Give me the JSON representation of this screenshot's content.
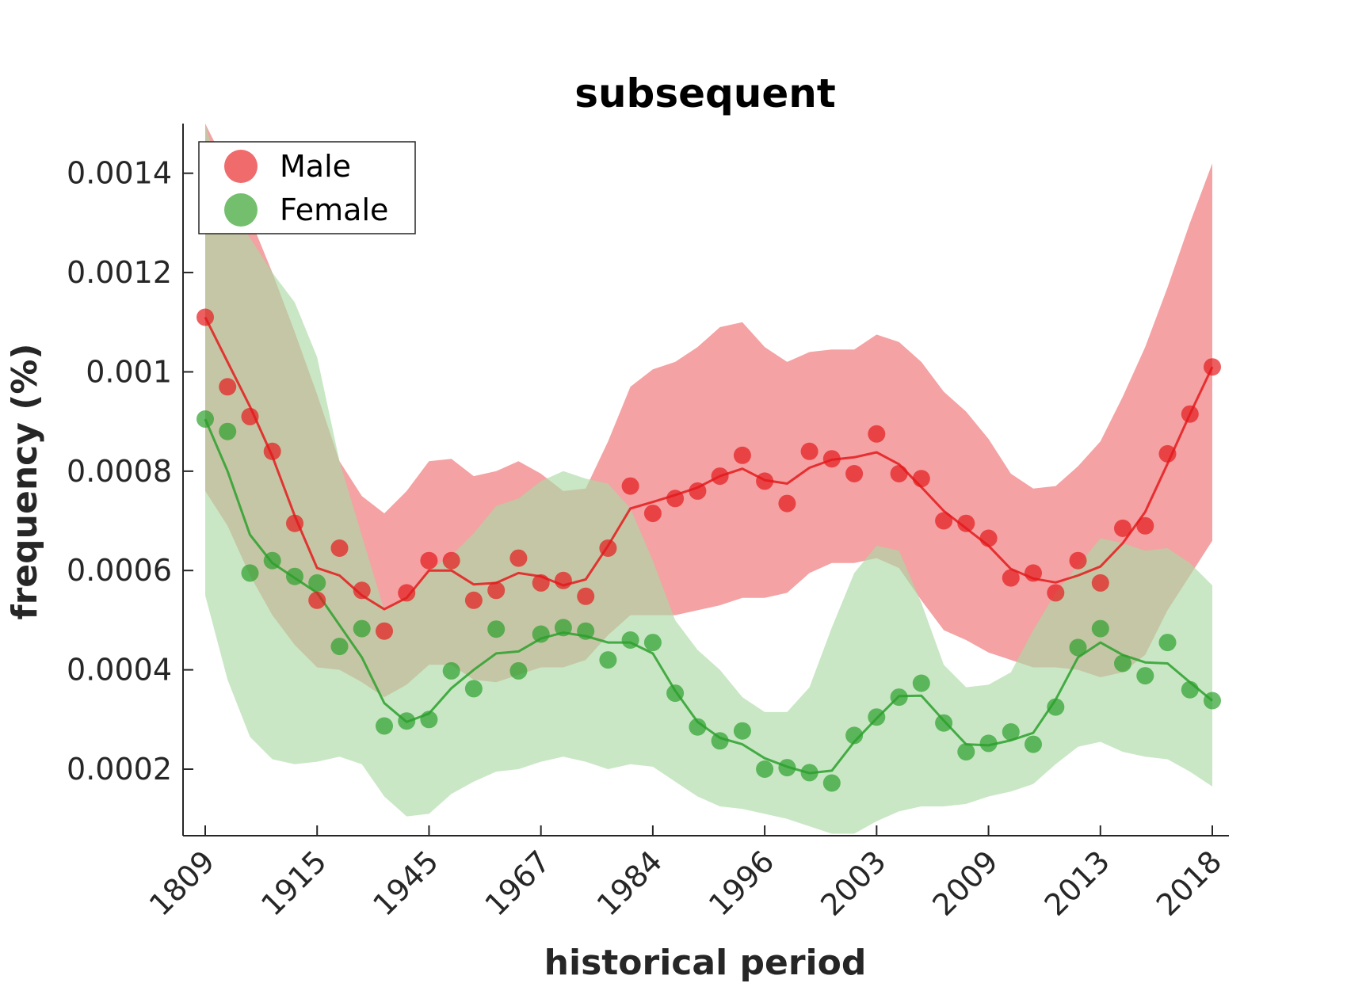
{
  "chart_data": {
    "type": "line",
    "title": "subsequent",
    "xlabel": "historical period",
    "ylabel": "frequency (%)",
    "x_tick_labels": [
      "1809",
      "1915",
      "1945",
      "1967",
      "1984",
      "1996",
      "2003",
      "2009",
      "2013",
      "2018"
    ],
    "y_ticks": [
      0.0002,
      0.0004,
      0.0006,
      0.0008,
      0.001,
      0.0012,
      0.0014
    ],
    "y_tick_labels": [
      "0.0002",
      "0.0004",
      "0.0006",
      "0.0008",
      "0.001",
      "0.0012",
      "0.0014"
    ],
    "ylim": [
      6.6e-05,
      0.0015
    ],
    "legend_position": "top-left",
    "series": [
      {
        "name": "Male",
        "color": "#e41a1c",
        "band_color": "#f4a2a3",
        "points": [
          0.00111,
          0.00097,
          0.00091,
          0.00084,
          0.000695,
          0.00054,
          0.000645,
          0.00056,
          0.000478,
          0.000555,
          0.00062,
          0.00062,
          0.00054,
          0.00056,
          0.000625,
          0.000575,
          0.00058,
          0.000548,
          0.000645,
          0.00077,
          0.000715,
          0.000745,
          0.00076,
          0.00079,
          0.000832,
          0.00078,
          0.000735,
          0.00084,
          0.000825,
          0.000795,
          0.000875,
          0.000795,
          0.000785,
          0.0007,
          0.000695,
          0.000665,
          0.000585,
          0.000595,
          0.000555,
          0.00062,
          0.000575,
          0.000685,
          0.00069,
          0.000835,
          0.000915,
          0.00101
        ],
        "trend": [
          0.00111,
          0.00102,
          0.00093,
          0.00083,
          0.00071,
          0.000605,
          0.00059,
          0.00055,
          0.000522,
          0.000545,
          0.0006,
          0.0006,
          0.000572,
          0.000575,
          0.000595,
          0.000588,
          0.00057,
          0.000582,
          0.00065,
          0.000725,
          0.000738,
          0.000752,
          0.000767,
          0.00079,
          0.000805,
          0.000782,
          0.000775,
          0.000807,
          0.000823,
          0.000828,
          0.000838,
          0.000814,
          0.000768,
          0.00072,
          0.000685,
          0.00065,
          0.000603,
          0.000584,
          0.000576,
          0.00059,
          0.000608,
          0.000655,
          0.000718,
          0.000815,
          0.000915,
          0.00101
        ],
        "upper": [
          0.0015,
          0.00141,
          0.00131,
          0.0012,
          0.00108,
          0.000955,
          0.00082,
          0.00075,
          0.000715,
          0.00076,
          0.00082,
          0.000825,
          0.00079,
          0.0008,
          0.00082,
          0.000795,
          0.00076,
          0.000765,
          0.00086,
          0.00097,
          0.001005,
          0.00102,
          0.00105,
          0.00109,
          0.0011,
          0.00105,
          0.00102,
          0.00104,
          0.001045,
          0.001045,
          0.001075,
          0.00106,
          0.00102,
          0.00096,
          0.00092,
          0.000865,
          0.000795,
          0.000765,
          0.00077,
          0.00081,
          0.00086,
          0.00095,
          0.00105,
          0.00117,
          0.0013,
          0.00142
        ],
        "lower": [
          0.00076,
          0.00069,
          0.00059,
          0.00051,
          0.00045,
          0.000405,
          0.0004,
          0.000375,
          0.000345,
          0.00037,
          0.00041,
          0.00041,
          0.00038,
          0.000375,
          0.00039,
          0.000405,
          0.000405,
          0.00042,
          0.00047,
          0.00051,
          0.00051,
          0.00051,
          0.00052,
          0.00053,
          0.000545,
          0.000545,
          0.000555,
          0.000595,
          0.000615,
          0.000615,
          0.000625,
          0.000605,
          0.00054,
          0.00048,
          0.00046,
          0.000435,
          0.00042,
          0.000405,
          0.000405,
          0.0004,
          0.000385,
          0.000395,
          0.00043,
          0.00052,
          0.00059,
          0.00066
        ]
      },
      {
        "name": "Female",
        "color": "#2ca02c",
        "band_color": "#acdaa6",
        "points": [
          0.000905,
          0.00088,
          0.000595,
          0.00062,
          0.000588,
          0.000575,
          0.000447,
          0.000483,
          0.000287,
          0.000297,
          0.0003,
          0.000398,
          0.000362,
          0.000482,
          0.000398,
          0.000472,
          0.000485,
          0.000478,
          0.00042,
          0.00046,
          0.000455,
          0.000353,
          0.000285,
          0.000257,
          0.000277,
          0.0002,
          0.000203,
          0.000193,
          0.000172,
          0.000268,
          0.000305,
          0.000345,
          0.000373,
          0.000293,
          0.000235,
          0.000252,
          0.000275,
          0.00025,
          0.000325,
          0.000445,
          0.000483,
          0.000413,
          0.000388,
          0.000455,
          0.00036,
          0.000338
        ],
        "trend": [
          0.000905,
          0.0008,
          0.000672,
          0.000615,
          0.000585,
          0.000555,
          0.00049,
          0.000425,
          0.000333,
          0.000295,
          0.000312,
          0.000363,
          0.0004,
          0.000433,
          0.000437,
          0.000463,
          0.000475,
          0.000468,
          0.000455,
          0.000455,
          0.000433,
          0.000358,
          0.000295,
          0.000263,
          0.00025,
          0.000222,
          0.000205,
          0.000192,
          0.000197,
          0.000255,
          0.000302,
          0.000347,
          0.000348,
          0.000298,
          0.00025,
          0.000248,
          0.000258,
          0.000273,
          0.00034,
          0.000425,
          0.000455,
          0.00043,
          0.000415,
          0.000413,
          0.000375,
          0.000338
        ],
        "upper": [
          0.0015,
          0.00134,
          0.00127,
          0.0012,
          0.00114,
          0.00103,
          0.00082,
          0.00067,
          0.00052,
          0.00055,
          0.0006,
          0.00063,
          0.000675,
          0.00073,
          0.000745,
          0.00078,
          0.0008,
          0.000785,
          0.000775,
          0.000725,
          0.00062,
          0.0005,
          0.00044,
          0.0004,
          0.000345,
          0.000315,
          0.000315,
          0.000365,
          0.000485,
          0.000595,
          0.00065,
          0.00064,
          0.000535,
          0.00041,
          0.000365,
          0.00037,
          0.000395,
          0.00048,
          0.000555,
          0.00061,
          0.000665,
          0.000655,
          0.00064,
          0.000645,
          0.000615,
          0.00057
        ],
        "lower": [
          0.00055,
          0.00038,
          0.000265,
          0.00022,
          0.00021,
          0.000215,
          0.000225,
          0.00021,
          0.000145,
          0.000105,
          0.00011,
          0.00015,
          0.000175,
          0.000195,
          0.0002,
          0.000215,
          0.000225,
          0.000215,
          0.0002,
          0.00021,
          0.000205,
          0.000175,
          0.000145,
          0.000125,
          0.00012,
          0.00011,
          0.0001,
          8.5e-05,
          7e-05,
          7e-05,
          9.5e-05,
          0.000115,
          0.000125,
          0.000125,
          0.00013,
          0.000145,
          0.000155,
          0.00017,
          0.00021,
          0.000245,
          0.000255,
          0.000235,
          0.000225,
          0.00022,
          0.000195,
          0.000165
        ]
      }
    ]
  }
}
